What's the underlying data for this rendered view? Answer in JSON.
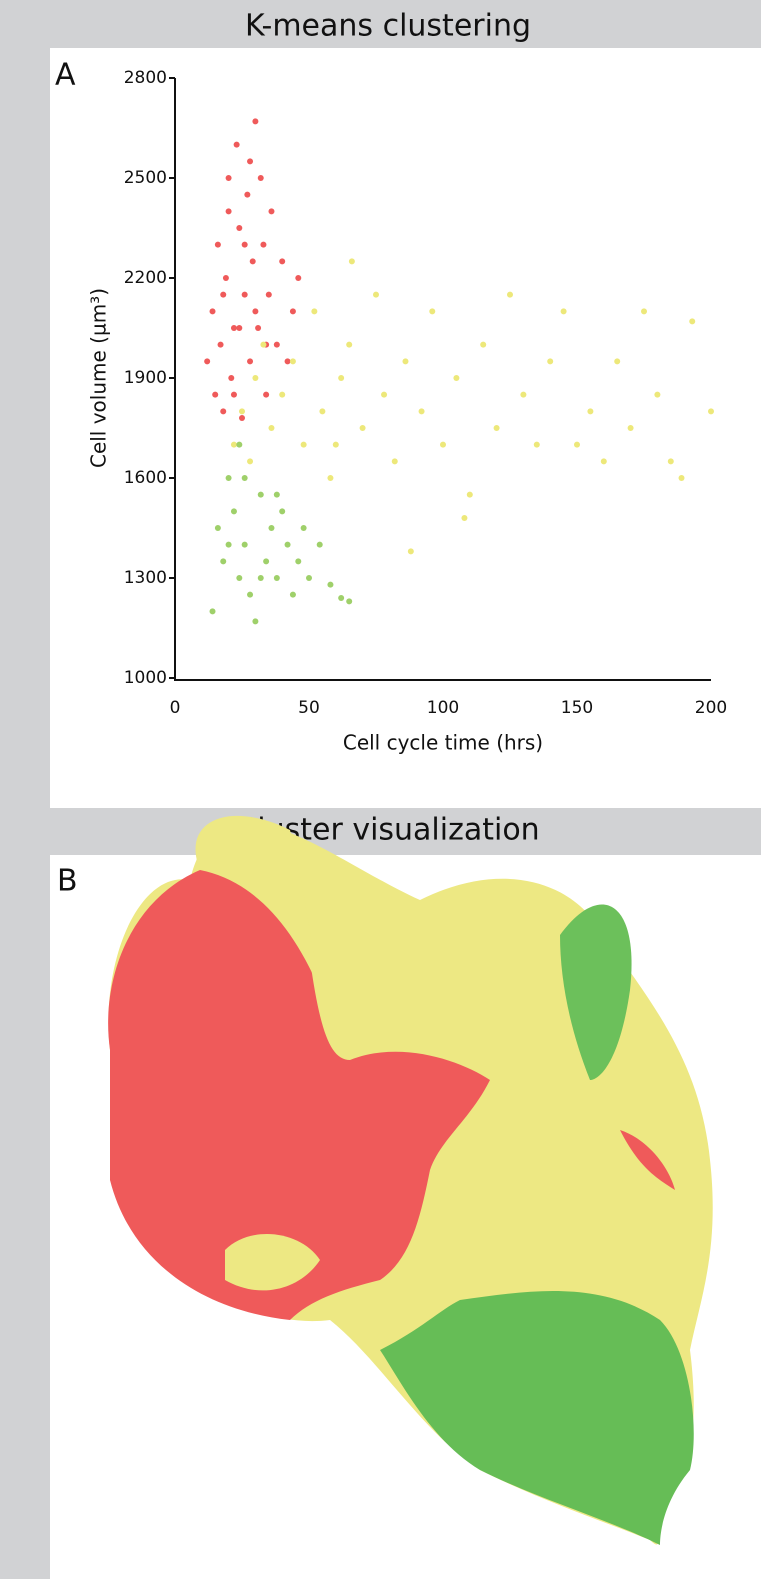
{
  "chart_data": {
    "type": "scatter",
    "title": "K-means clustering",
    "panel_label": "A",
    "x_label": "Cell cycle time (hrs)",
    "y_label": "Cell volume (µm³)",
    "xlim": [
      0,
      200
    ],
    "xticks": [
      0,
      50,
      100,
      150,
      200
    ],
    "ylim": [
      1000,
      2800
    ],
    "yticks": [
      1000,
      1300,
      1600,
      1900,
      2200,
      2500,
      2800
    ],
    "series": [
      {
        "color": "#ef5a5a",
        "x": [
          12,
          14,
          15,
          16,
          17,
          18,
          19,
          20,
          21,
          22,
          23,
          24,
          25,
          26,
          27,
          28,
          29,
          30,
          31,
          32,
          33,
          34,
          35,
          36,
          38,
          40,
          42,
          44,
          46,
          18,
          22,
          26,
          30,
          34,
          20,
          28,
          24
        ],
        "values": [
          1950,
          2100,
          1850,
          2300,
          2000,
          1800,
          2200,
          2400,
          1900,
          2050,
          2600,
          2350,
          1780,
          2150,
          2450,
          1950,
          2250,
          2670,
          2050,
          2500,
          2300,
          1850,
          2150,
          2400,
          2000,
          2250,
          1950,
          2100,
          2200,
          2150,
          1850,
          2300,
          2100,
          2000,
          2500,
          2550,
          2050
        ]
      },
      {
        "color": "#ede87a",
        "x": [
          22,
          25,
          28,
          30,
          33,
          36,
          40,
          44,
          48,
          52,
          55,
          58,
          62,
          65,
          70,
          75,
          78,
          82,
          86,
          88,
          92,
          96,
          100,
          105,
          110,
          115,
          120,
          125,
          130,
          135,
          140,
          145,
          150,
          155,
          160,
          165,
          170,
          175,
          180,
          185,
          189,
          193,
          200,
          66,
          108,
          60
        ],
        "values": [
          1700,
          1800,
          1650,
          1900,
          2000,
          1750,
          1850,
          1950,
          1700,
          2100,
          1800,
          1600,
          1900,
          2000,
          1750,
          2150,
          1850,
          1650,
          1950,
          1380,
          1800,
          2100,
          1700,
          1900,
          1550,
          2000,
          1750,
          2150,
          1850,
          1700,
          1950,
          2100,
          1700,
          1800,
          1650,
          1950,
          1750,
          2100,
          1850,
          1650,
          1600,
          2070,
          1800,
          2250,
          1480,
          1700
        ]
      },
      {
        "color": "#9fd06a",
        "x": [
          14,
          16,
          18,
          20,
          22,
          24,
          26,
          28,
          30,
          32,
          34,
          36,
          38,
          40,
          42,
          44,
          46,
          48,
          50,
          54,
          58,
          62,
          65,
          20,
          26,
          32,
          38,
          24
        ],
        "values": [
          1200,
          1450,
          1350,
          1600,
          1500,
          1700,
          1400,
          1250,
          1170,
          1550,
          1350,
          1450,
          1300,
          1500,
          1400,
          1250,
          1350,
          1450,
          1300,
          1400,
          1280,
          1240,
          1230,
          1400,
          1600,
          1300,
          1550,
          1300
        ]
      }
    ]
  },
  "panel_b": {
    "title": "Cluster visualization",
    "panel_label": "B"
  }
}
